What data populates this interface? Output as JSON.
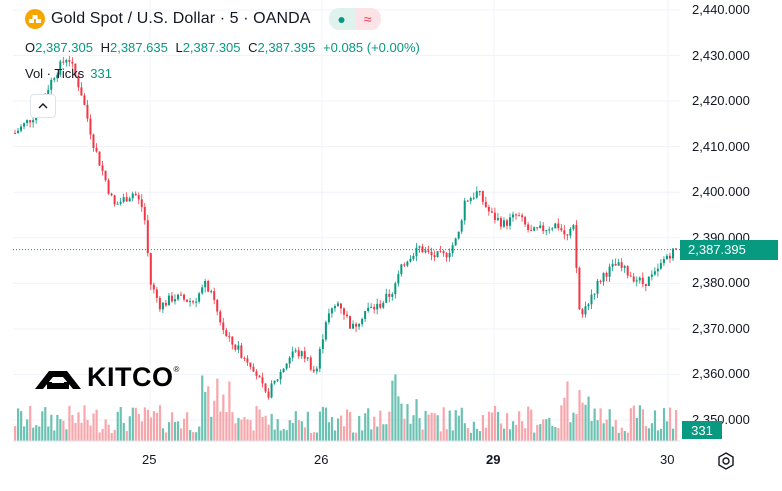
{
  "symbol": {
    "icon": "gold-bars-icon",
    "title": "Gold Spot / U.S. Dollar · 5 · OANDA",
    "pill_left": "●",
    "pill_right": "≈"
  },
  "ohlc": {
    "open_label": "O",
    "open": "2,387.305",
    "high_label": "H",
    "high": "2,387.635",
    "low_label": "L",
    "low": "2,387.305",
    "close_label": "C",
    "close": "2,387.395",
    "change": "+0.085 (+0.00%)"
  },
  "volume": {
    "label": "Vol · Ticks",
    "value": "331"
  },
  "collapse_icon": "chevron-up-icon",
  "watermark": {
    "text": "KITCO",
    "reg": "®"
  },
  "price_tag": "2,387.395",
  "volume_tag": "331",
  "colors": {
    "up": "#089981",
    "down": "#f23645",
    "vol_up": "#6cc2b2",
    "vol_down": "#f7a6ab",
    "grid": "#f0f3fa",
    "axis": "#e0e3eb"
  },
  "chart_data": {
    "type": "candlestick",
    "title": "Gold Spot / U.S. Dollar · 5 · OANDA",
    "y_axis_ticks": [
      "2,440.000",
      "2,430.000",
      "2,420.000",
      "2,410.000",
      "2,400.000",
      "2,390.000",
      "2,380.000",
      "2,370.000",
      "2,360.000",
      "2,350.000"
    ],
    "x_axis_ticks": [
      "25",
      "26",
      "29",
      "30"
    ],
    "ylim": [
      2345,
      2442
    ],
    "last_price": 2387.395,
    "price_path": [
      [
        0,
        2413
      ],
      [
        0.03,
        2417
      ],
      [
        0.06,
        2426
      ],
      [
        0.08,
        2430
      ],
      [
        0.1,
        2422
      ],
      [
        0.12,
        2410
      ],
      [
        0.15,
        2397
      ],
      [
        0.18,
        2400
      ],
      [
        0.195,
        2396
      ],
      [
        0.205,
        2380
      ],
      [
        0.22,
        2375
      ],
      [
        0.24,
        2377
      ],
      [
        0.27,
        2376
      ],
      [
        0.29,
        2380
      ],
      [
        0.3,
        2376
      ],
      [
        0.32,
        2368
      ],
      [
        0.34,
        2365
      ],
      [
        0.36,
        2362
      ],
      [
        0.38,
        2355
      ],
      [
        0.4,
        2360
      ],
      [
        0.42,
        2365
      ],
      [
        0.44,
        2364
      ],
      [
        0.455,
        2360
      ],
      [
        0.47,
        2372
      ],
      [
        0.49,
        2376
      ],
      [
        0.51,
        2370
      ],
      [
        0.53,
        2374
      ],
      [
        0.55,
        2375
      ],
      [
        0.57,
        2378
      ],
      [
        0.59,
        2385
      ],
      [
        0.61,
        2388
      ],
      [
        0.63,
        2386
      ],
      [
        0.65,
        2386
      ],
      [
        0.67,
        2390
      ],
      [
        0.68,
        2398
      ],
      [
        0.7,
        2400
      ],
      [
        0.72,
        2395
      ],
      [
        0.74,
        2393
      ],
      [
        0.76,
        2395
      ],
      [
        0.78,
        2391
      ],
      [
        0.8,
        2392
      ],
      [
        0.82,
        2393
      ],
      [
        0.835,
        2390
      ],
      [
        0.845,
        2392
      ],
      [
        0.855,
        2372
      ],
      [
        0.87,
        2377
      ],
      [
        0.89,
        2382
      ],
      [
        0.91,
        2384
      ],
      [
        0.93,
        2382
      ],
      [
        0.95,
        2380
      ],
      [
        0.97,
        2382
      ],
      [
        0.985,
        2386
      ],
      [
        1.0,
        2387.4
      ]
    ]
  }
}
